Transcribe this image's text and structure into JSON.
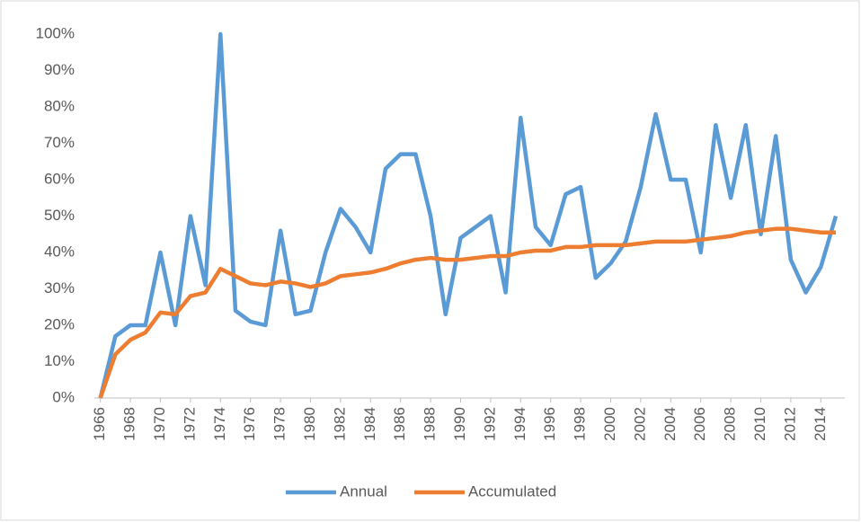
{
  "chart_data": {
    "type": "line",
    "x": [
      1966,
      1967,
      1968,
      1969,
      1970,
      1971,
      1972,
      1973,
      1974,
      1975,
      1976,
      1977,
      1978,
      1979,
      1980,
      1981,
      1982,
      1983,
      1984,
      1985,
      1986,
      1987,
      1988,
      1989,
      1990,
      1991,
      1992,
      1993,
      1994,
      1995,
      1996,
      1997,
      1998,
      1999,
      2000,
      2001,
      2002,
      2003,
      2004,
      2005,
      2006,
      2007,
      2008,
      2009,
      2010,
      2011,
      2012,
      2013,
      2014,
      2015
    ],
    "series": [
      {
        "name": "Annual",
        "color": "#5b9bd5",
        "values": [
          0,
          17,
          20,
          20,
          40,
          20,
          50,
          31,
          100,
          24,
          21,
          20,
          46,
          23,
          24,
          40,
          52,
          47,
          40,
          63,
          67,
          67,
          50,
          23,
          44,
          47,
          50,
          29,
          77,
          47,
          42,
          56,
          58,
          33,
          37,
          43,
          58,
          78,
          60,
          60,
          40,
          75,
          55,
          75,
          45,
          72,
          38,
          29,
          36,
          50
        ]
      },
      {
        "name": "Accumulated",
        "color": "#ed7d31",
        "values": [
          0,
          12,
          16,
          18,
          23.5,
          23,
          28,
          29,
          35.5,
          33.5,
          31.5,
          31,
          32,
          31.5,
          30.5,
          31.5,
          33.5,
          34,
          34.5,
          35.5,
          37,
          38,
          38.5,
          38,
          38,
          38.5,
          39,
          39,
          40,
          40.5,
          40.5,
          41.5,
          41.5,
          42,
          42,
          42,
          42.5,
          43,
          43,
          43,
          43.5,
          44,
          44.5,
          45.5,
          46,
          46.5,
          46.5,
          46,
          45.5,
          45.5
        ]
      }
    ],
    "xlim": [
      1965.6,
      2015.6
    ],
    "xticks": [
      1966,
      1968,
      1970,
      1972,
      1974,
      1976,
      1978,
      1980,
      1982,
      1984,
      1986,
      1988,
      1990,
      1992,
      1994,
      1996,
      1998,
      2000,
      2002,
      2004,
      2006,
      2008,
      2010,
      2012,
      2014
    ],
    "ylim": [
      0,
      100
    ],
    "yticks": [
      {
        "value": 0,
        "label": "0%"
      },
      {
        "value": 10,
        "label": "10%"
      },
      {
        "value": 20,
        "label": "20%"
      },
      {
        "value": 30,
        "label": "30%"
      },
      {
        "value": 40,
        "label": "40%"
      },
      {
        "value": 50,
        "label": "50%"
      },
      {
        "value": 60,
        "label": "60%"
      },
      {
        "value": 70,
        "label": "70%"
      },
      {
        "value": 80,
        "label": "80%"
      },
      {
        "value": 90,
        "label": "90%"
      },
      {
        "value": 100,
        "label": "100%"
      }
    ],
    "grid": false,
    "legend": "bottom"
  }
}
